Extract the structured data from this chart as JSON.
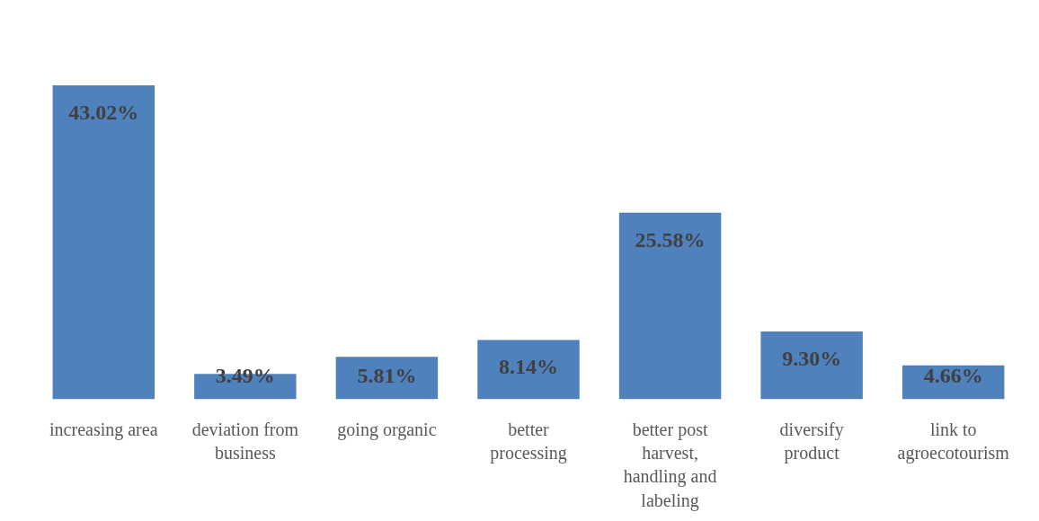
{
  "chart_data": {
    "type": "bar",
    "categories": [
      "increasing area",
      "deviation from business",
      "going organic",
      "better processing",
      "better post harvest, handling and labeling",
      "diversify product",
      "link to agroecotourism"
    ],
    "values": [
      43.02,
      3.49,
      5.81,
      8.14,
      25.58,
      9.3,
      4.66
    ],
    "value_labels": [
      "43.02%",
      "3.49%",
      "5.81%",
      "8.14%",
      "25.58%",
      "9.30%",
      "4.66%"
    ],
    "color": "#4f81bd",
    "grid": false
  }
}
